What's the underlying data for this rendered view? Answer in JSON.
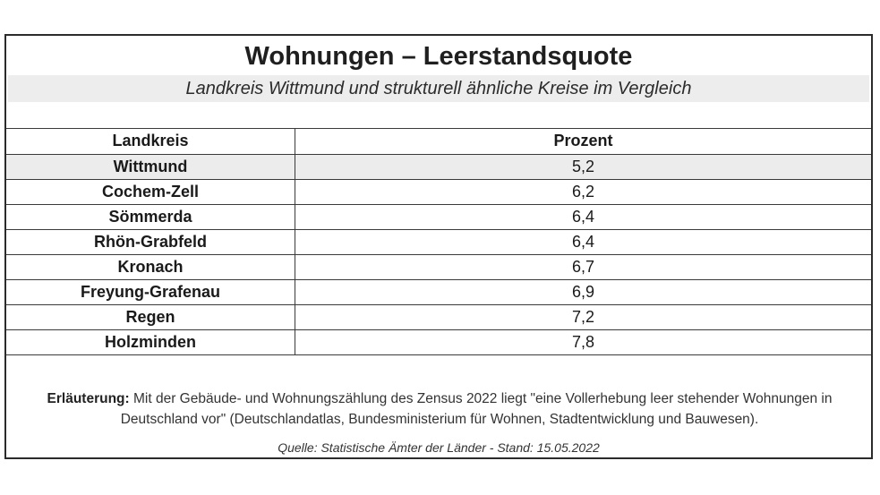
{
  "title": "Wohnungen – Leerstandsquote",
  "subtitle": "Landkreis Wittmund und strukturell ähnliche Kreise im Vergleich",
  "table": {
    "headers": [
      "Landkreis",
      "Prozent"
    ],
    "rows": [
      {
        "name": "Wittmund",
        "value": "5,2"
      },
      {
        "name": "Cochem-Zell",
        "value": "6,2"
      },
      {
        "name": "Sömmerda",
        "value": "6,4"
      },
      {
        "name": "Rhön-Grabfeld",
        "value": "6,4"
      },
      {
        "name": "Kronach",
        "value": "6,7"
      },
      {
        "name": "Freyung-Grafenau",
        "value": "6,9"
      },
      {
        "name": "Regen",
        "value": "7,2"
      },
      {
        "name": "Holzminden",
        "value": "7,8"
      }
    ]
  },
  "note": {
    "label": "Erläuterung:",
    "text": " Mit der Gebäude- und Wohnungszählung des Zensus 2022 liegt \"eine Vollerhebung leer stehender Wohnungen in Deutschland vor\" (Deutschlandatlas, Bundesministerium für Wohnen, Stadtentwicklung und Bauwesen)."
  },
  "source": "Quelle: Statistische Ämter der Länder - Stand: 15.05.2022",
  "colors": {
    "highlight_row": "#ececec",
    "subtitle_band": "#ededed",
    "border": "#2b2b2b"
  }
}
